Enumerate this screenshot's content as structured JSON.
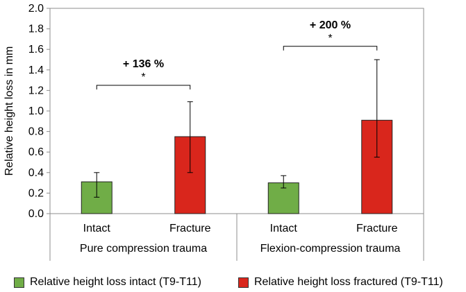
{
  "chart_data": {
    "type": "bar",
    "ylabel": "Relative height loss in mm",
    "ylim": [
      0,
      2.0
    ],
    "yticks": [
      0.0,
      0.2,
      0.4,
      0.6,
      0.8,
      1.0,
      1.2,
      1.4,
      1.6,
      1.8,
      2.0
    ],
    "ytick_labels": [
      "0.0",
      "0.2",
      "0.4",
      "0.6",
      "0.8",
      "1.0",
      "1.2",
      "1.4",
      "1.6",
      "1.8",
      "2.0"
    ],
    "categories": [
      "Intact",
      "Fracture",
      "Intact",
      "Fracture"
    ],
    "groups": [
      "Pure compression trauma",
      "Flexion-compression trauma"
    ],
    "series": [
      {
        "name": "Relative height loss intact (T9-T11)",
        "color": "#70ad47",
        "values": [
          0.31,
          null,
          0.3,
          null
        ],
        "err_low": [
          0.16,
          null,
          0.25,
          null
        ],
        "err_high": [
          0.4,
          null,
          0.37,
          null
        ]
      },
      {
        "name": "Relative height loss fractured (T9-T11)",
        "color": "#d9261c",
        "values": [
          null,
          0.75,
          null,
          0.91
        ],
        "err_low": [
          null,
          0.4,
          null,
          0.55
        ],
        "err_high": [
          null,
          1.09,
          null,
          1.5
        ]
      }
    ],
    "annotations": [
      {
        "text": "+ 136 %",
        "star": "*",
        "from": 0,
        "to": 1,
        "bracket_y": 1.25
      },
      {
        "text": "+ 200 %",
        "star": "*",
        "from": 2,
        "to": 3,
        "bracket_y": 1.63
      }
    ],
    "legend_position": "bottom",
    "grid": false
  }
}
